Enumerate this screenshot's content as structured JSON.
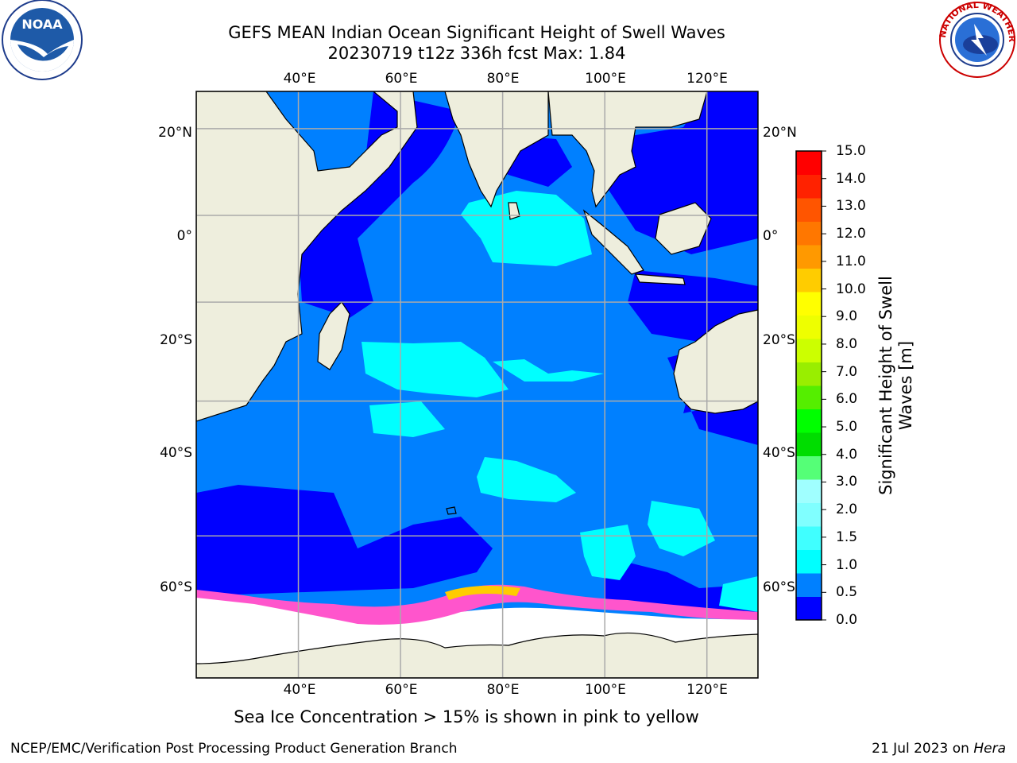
{
  "title": {
    "line1": "GEFS MEAN Indian Ocean Significant Height of Swell Waves",
    "line2": "20230719 t12z 336h fcst   Max: 1.84"
  },
  "logos": {
    "left": {
      "icon": "noaa-logo",
      "text": "NOAA"
    },
    "right": {
      "icon": "national-weather-service-logo",
      "ring_text": "NATIONAL WEATHER SERVICE"
    }
  },
  "map": {
    "lon_labels": [
      "40°E",
      "60°E",
      "80°E",
      "100°E",
      "120°E"
    ],
    "lat_labels": [
      "20°N",
      "0°",
      "20°S",
      "40°S",
      "60°S"
    ],
    "lon_values": [
      40,
      60,
      80,
      100,
      120
    ],
    "lat_values": [
      20,
      0,
      -20,
      -40,
      -60
    ],
    "lon_range": [
      20,
      130
    ],
    "lat_range": [
      -73,
      28
    ],
    "land_color": "#eeeedd",
    "ice_color": "#ffffff"
  },
  "colorbar": {
    "label": "Significant Height of Swell Waves [m]",
    "ticks": [
      "15.0",
      "14.0",
      "13.0",
      "12.0",
      "11.0",
      "10.0",
      "9.0",
      "8.0",
      "7.0",
      "6.0",
      "5.0",
      "4.0",
      "3.0",
      "2.0",
      "1.5",
      "1.0",
      "0.5",
      "0.0"
    ],
    "colors": [
      "#0000ff",
      "#0080ff",
      "#00ffff",
      "#40ffff",
      "#80ffff",
      "#a0ffff",
      "#55ff77",
      "#00dd00",
      "#00ff00",
      "#55ee00",
      "#99ee00",
      "#ccff00",
      "#eeff00",
      "#ffff00",
      "#ffcc00",
      "#ff9900",
      "#ff7700",
      "#ff5500",
      "#ff2200",
      "#ff0000"
    ]
  },
  "caption": "Sea Ice Concentration > 15% is shown in pink to yellow",
  "footer": {
    "left": "NCEP/EMC/Verification Post Processing Product Generation Branch",
    "right_date": "21 Jul 2023 on ",
    "right_machine": "Hera"
  }
}
